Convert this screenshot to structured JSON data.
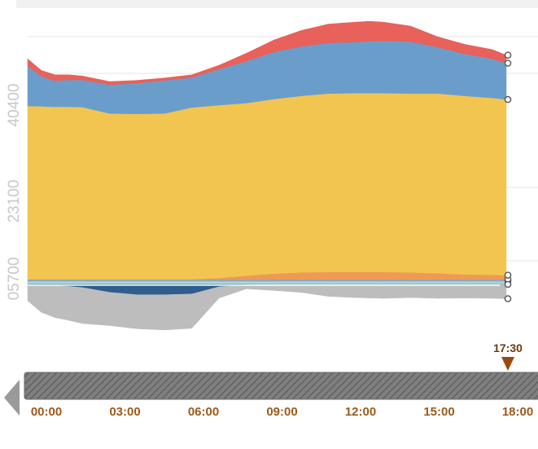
{
  "chart_data": {
    "type": "area",
    "title": "",
    "xlabel": "",
    "ylabel": "",
    "y_tick_labels": [
      "05700",
      "23100",
      "40400"
    ],
    "x_tick_labels": [
      "00:00",
      "03:00",
      "06:00",
      "09:00",
      "12:00",
      "15:00",
      "18:00"
    ],
    "x_hours": [
      0,
      0.5,
      1,
      1.5,
      2,
      3,
      4,
      5,
      6,
      7,
      8,
      9,
      10,
      11,
      12,
      12.5,
      13,
      14,
      15,
      16,
      17,
      17.5
    ],
    "current_time_label": "17:30",
    "current_time_hours": 17.5,
    "grid": true,
    "legend": "none",
    "series": [
      {
        "color": "#a9d8d2",
        "values": [
          800,
          800,
          800,
          800,
          800,
          800,
          800,
          800,
          800,
          800,
          800,
          800,
          800,
          800,
          800,
          800,
          800,
          800,
          800,
          800,
          800,
          800
        ]
      },
      {
        "color": "#8fa7c9",
        "values": [
          500,
          500,
          500,
          500,
          500,
          500,
          500,
          500,
          500,
          500,
          500,
          500,
          500,
          500,
          500,
          500,
          500,
          500,
          500,
          500,
          500,
          500
        ]
      },
      {
        "color": "#ef9a52",
        "values": [
          0,
          0,
          0,
          0,
          0,
          0,
          0,
          0,
          0,
          300,
          900,
          1400,
          1700,
          1800,
          1800,
          1800,
          1800,
          1700,
          1500,
          1200,
          1100,
          1000
        ]
      },
      {
        "color": "#f2c551",
        "values": [
          43400,
          43300,
          43200,
          43200,
          43100,
          41500,
          41400,
          41500,
          43000,
          43300,
          43200,
          43700,
          44200,
          44700,
          44800,
          44800,
          44800,
          44800,
          45000,
          44700,
          44300,
          44000
        ]
      },
      {
        "color": "#6b9dcb",
        "values": [
          10000,
          7500,
          6500,
          6700,
          6800,
          7200,
          7700,
          8300,
          7500,
          9000,
          10500,
          11800,
          12400,
          12700,
          12800,
          13000,
          13100,
          13000,
          11600,
          10500,
          9800,
          9100
        ]
      },
      {
        "color": "#e8615a",
        "values": [
          1800,
          1500,
          1500,
          1300,
          1000,
          800,
          700,
          600,
          700,
          1000,
          2000,
          3000,
          4000,
          4700,
          5000,
          5000,
          4700,
          3900,
          2600,
          2400,
          2300,
          2000
        ]
      },
      {
        "color": "#2e5d8e",
        "values": [
          -100,
          -200,
          -300,
          -500,
          -800,
          -2000,
          -2600,
          -2600,
          -2400,
          -600,
          -100,
          0,
          0,
          0,
          0,
          0,
          0,
          0,
          0,
          0,
          0,
          0
        ]
      },
      {
        "color": "#bdbdbd",
        "values": [
          -4000,
          -6800,
          -8000,
          -8500,
          -9000,
          -8300,
          -8500,
          -8800,
          -8600,
          -2800,
          -1000,
          -1500,
          -2000,
          -3000,
          -3300,
          -3400,
          -3500,
          -3300,
          -3500,
          -3400,
          -3500,
          -3600
        ]
      }
    ]
  }
}
